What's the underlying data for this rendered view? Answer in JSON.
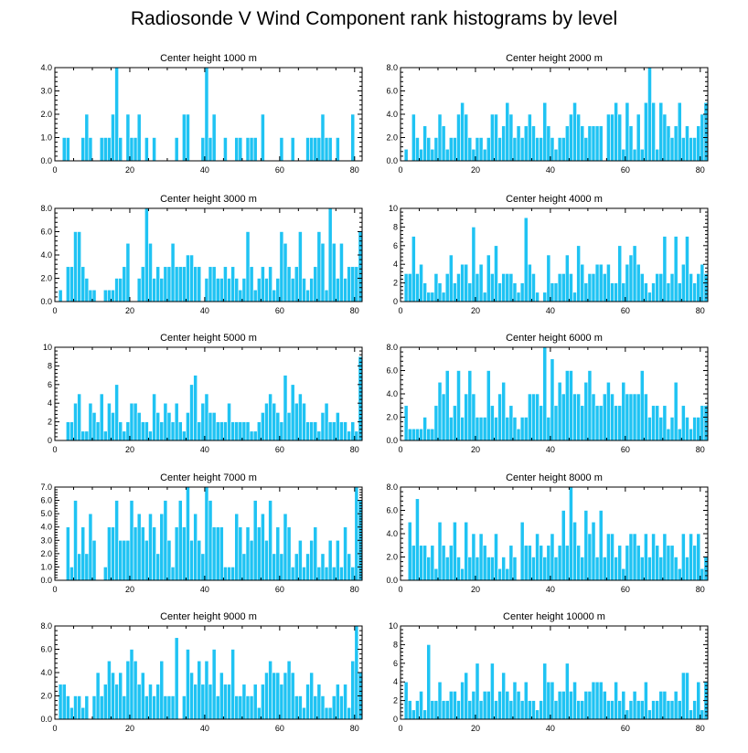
{
  "title": "Radiosonde V Wind Component rank histograms by level",
  "colors": {
    "bar": "#1FC3F3",
    "bar_edge": "#ffffff",
    "axis": "#000000"
  },
  "chart_data": [
    {
      "type": "bar",
      "title": "Center height 1000 m",
      "xlim": [
        0,
        82
      ],
      "ylim": [
        0,
        4
      ],
      "xticks": [
        0,
        20,
        40,
        60,
        80
      ],
      "yticks": [
        "0.0",
        "1.0",
        "2.0",
        "3.0",
        "4.0"
      ],
      "yticks_values": [
        0,
        1,
        2,
        3,
        4
      ],
      "values": [
        0,
        0,
        1,
        1,
        0,
        0,
        0,
        1,
        2,
        1,
        0,
        0,
        1,
        1,
        1,
        2,
        4,
        1,
        0,
        2,
        1,
        1,
        2,
        0,
        1,
        0,
        1,
        0,
        0,
        0,
        0,
        0,
        1,
        0,
        2,
        2,
        0,
        0,
        0,
        1,
        4,
        1,
        2,
        0,
        0,
        1,
        0,
        0,
        1,
        1,
        0,
        1,
        1,
        1,
        0,
        2,
        0,
        0,
        0,
        0,
        1,
        0,
        0,
        1,
        0,
        0,
        0,
        1,
        1,
        1,
        1,
        2,
        1,
        1,
        0,
        1,
        0,
        0,
        0,
        2,
        0,
        0
      ]
    },
    {
      "type": "bar",
      "title": "Center height 2000 m",
      "xlim": [
        0,
        82
      ],
      "ylim": [
        0,
        8
      ],
      "xticks": [
        0,
        20,
        40,
        60,
        80
      ],
      "yticks": [
        "0.0",
        "2.0",
        "4.0",
        "6.0",
        "8.0"
      ],
      "yticks_values": [
        0,
        2,
        4,
        6,
        8
      ],
      "values": [
        0,
        1,
        0,
        4,
        2,
        1,
        3,
        2,
        1,
        2,
        4,
        3,
        1,
        2,
        2,
        4,
        5,
        4,
        2,
        1,
        2,
        2,
        1,
        2,
        4,
        4,
        2,
        3,
        5,
        4,
        2,
        3,
        2,
        3,
        4,
        3,
        2,
        2,
        5,
        3,
        2,
        1,
        2,
        2,
        3,
        4,
        5,
        4,
        3,
        2,
        3,
        3,
        3,
        3,
        0,
        4,
        4,
        5,
        4,
        1,
        5,
        3,
        1,
        4,
        1,
        5,
        8,
        5,
        1,
        5,
        4,
        3,
        2,
        3,
        5,
        2,
        3,
        2,
        2,
        3,
        4,
        5
      ]
    },
    {
      "type": "bar",
      "title": "Center height 3000 m",
      "xlim": [
        0,
        82
      ],
      "ylim": [
        0,
        8
      ],
      "xticks": [
        0,
        20,
        40,
        60,
        80
      ],
      "yticks": [
        "0.0",
        "2.0",
        "4.0",
        "6.0",
        "8.0"
      ],
      "yticks_values": [
        0,
        2,
        4,
        6,
        8
      ],
      "values": [
        0,
        1,
        0,
        3,
        3,
        6,
        6,
        3,
        2,
        1,
        1,
        0,
        0,
        1,
        1,
        1,
        2,
        2,
        3,
        5,
        0,
        0,
        2,
        3,
        8,
        5,
        2,
        3,
        2,
        3,
        3,
        5,
        3,
        3,
        3,
        4,
        4,
        3,
        3,
        0,
        2,
        3,
        3,
        2,
        2,
        3,
        2,
        3,
        2,
        1,
        2,
        6,
        3,
        1,
        2,
        3,
        2,
        3,
        1,
        2,
        6,
        5,
        3,
        2,
        3,
        6,
        2,
        1,
        2,
        3,
        6,
        5,
        1,
        8,
        5,
        2,
        5,
        2,
        3,
        3,
        3,
        6
      ]
    },
    {
      "type": "bar",
      "title": "Center height 4000 m",
      "xlim": [
        0,
        82
      ],
      "ylim": [
        0,
        10
      ],
      "xticks": [
        0,
        20,
        40,
        60,
        80
      ],
      "yticks": [
        "0",
        "2",
        "4",
        "6",
        "8",
        "10"
      ],
      "yticks_values": [
        0,
        2,
        4,
        6,
        8,
        10
      ],
      "values": [
        0,
        3,
        3,
        7,
        3,
        4,
        2,
        1,
        1,
        3,
        2,
        1,
        3,
        5,
        2,
        3,
        4,
        4,
        2,
        8,
        3,
        4,
        1,
        5,
        3,
        6,
        2,
        3,
        3,
        3,
        2,
        1,
        2,
        9,
        4,
        3,
        1,
        0,
        1,
        5,
        2,
        2,
        3,
        3,
        5,
        3,
        1,
        6,
        4,
        2,
        3,
        3,
        4,
        4,
        3,
        4,
        2,
        2,
        6,
        2,
        4,
        5,
        6,
        4,
        3,
        2,
        1,
        2,
        3,
        3,
        7,
        2,
        3,
        7,
        2,
        4,
        7,
        3,
        2,
        3,
        4,
        3
      ]
    },
    {
      "type": "bar",
      "title": "Center height 5000 m",
      "xlim": [
        0,
        82
      ],
      "ylim": [
        0,
        10
      ],
      "xticks": [
        0,
        20,
        40,
        60,
        80
      ],
      "yticks": [
        "0",
        "2",
        "4",
        "6",
        "8",
        "10"
      ],
      "yticks_values": [
        0,
        2,
        4,
        6,
        8,
        10
      ],
      "values": [
        0,
        0,
        0,
        2,
        2,
        4,
        5,
        1,
        1,
        4,
        3,
        2,
        5,
        1,
        4,
        3,
        6,
        2,
        1,
        2,
        4,
        4,
        3,
        2,
        2,
        1,
        5,
        3,
        2,
        4,
        3,
        2,
        4,
        2,
        1,
        3,
        6,
        7,
        2,
        4,
        5,
        3,
        3,
        2,
        2,
        2,
        4,
        2,
        2,
        2,
        2,
        2,
        1,
        1,
        2,
        3,
        4,
        5,
        4,
        3,
        2,
        7,
        3,
        6,
        4,
        5,
        4,
        2,
        2,
        2,
        1,
        3,
        4,
        2,
        2,
        3,
        2,
        2,
        1,
        2,
        1,
        9
      ]
    },
    {
      "type": "bar",
      "title": "Center height 6000 m",
      "xlim": [
        0,
        82
      ],
      "ylim": [
        0,
        8
      ],
      "xticks": [
        0,
        20,
        40,
        60,
        80
      ],
      "yticks": [
        "0.0",
        "2.0",
        "4.0",
        "6.0",
        "8.0"
      ],
      "yticks_values": [
        0,
        2,
        4,
        6,
        8
      ],
      "values": [
        0,
        3,
        1,
        1,
        1,
        1,
        2,
        1,
        1,
        3,
        5,
        4,
        6,
        2,
        3,
        6,
        2,
        4,
        6,
        4,
        2,
        2,
        2,
        6,
        3,
        2,
        4,
        5,
        2,
        3,
        2,
        1,
        2,
        2,
        4,
        4,
        4,
        3,
        8,
        2,
        7,
        3,
        5,
        4,
        6,
        6,
        4,
        4,
        3,
        5,
        6,
        4,
        3,
        3,
        4,
        5,
        4,
        3,
        3,
        5,
        4,
        4,
        4,
        4,
        6,
        4,
        2,
        3,
        3,
        2,
        3,
        1,
        2,
        5,
        1,
        3,
        2,
        1,
        2,
        2,
        3,
        3
      ]
    },
    {
      "type": "bar",
      "title": "Center height 7000 m",
      "xlim": [
        0,
        82
      ],
      "ylim": [
        0,
        7
      ],
      "xticks": [
        0,
        20,
        40,
        60,
        80
      ],
      "yticks": [
        "0.0",
        "1.0",
        "2.0",
        "3.0",
        "4.0",
        "5.0",
        "6.0",
        "7.0"
      ],
      "yticks_values": [
        0,
        1,
        2,
        3,
        4,
        5,
        6,
        7
      ],
      "values": [
        0,
        0,
        0,
        4,
        1,
        6,
        2,
        4,
        2,
        5,
        3,
        0,
        0,
        1,
        4,
        4,
        6,
        3,
        3,
        3,
        6,
        4,
        5,
        4,
        3,
        5,
        4,
        2,
        5,
        6,
        3,
        1,
        4,
        6,
        4,
        7,
        3,
        5,
        3,
        2,
        7,
        6,
        4,
        4,
        4,
        1,
        1,
        1,
        5,
        4,
        2,
        4,
        3,
        6,
        4,
        5,
        3,
        6,
        2,
        4,
        2,
        5,
        4,
        1,
        2,
        3,
        1,
        2,
        3,
        4,
        1,
        2,
        1,
        3,
        1,
        3,
        1,
        4,
        2,
        1,
        7,
        6
      ]
    },
    {
      "type": "bar",
      "title": "Center height 8000 m",
      "xlim": [
        0,
        82
      ],
      "ylim": [
        0,
        8
      ],
      "xticks": [
        0,
        20,
        40,
        60,
        80
      ],
      "yticks": [
        "0.0",
        "2.0",
        "4.0",
        "6.0",
        "8.0"
      ],
      "yticks_values": [
        0,
        2,
        4,
        6,
        8
      ],
      "values": [
        0,
        0,
        5,
        3,
        7,
        3,
        3,
        2,
        3,
        1,
        5,
        3,
        2,
        3,
        5,
        2,
        1,
        5,
        2,
        4,
        2,
        4,
        3,
        2,
        2,
        4,
        1,
        2,
        1,
        3,
        2,
        0,
        5,
        3,
        3,
        2,
        4,
        3,
        2,
        3,
        4,
        2,
        3,
        6,
        3,
        8,
        5,
        3,
        2,
        6,
        4,
        5,
        2,
        6,
        2,
        4,
        4,
        2,
        3,
        1,
        3,
        4,
        4,
        3,
        2,
        4,
        2,
        4,
        3,
        2,
        4,
        3,
        3,
        2,
        1,
        4,
        2,
        4,
        3,
        4,
        1,
        2
      ]
    },
    {
      "type": "bar",
      "title": "Center height 9000 m",
      "xlim": [
        0,
        82
      ],
      "ylim": [
        0,
        8
      ],
      "xticks": [
        0,
        20,
        40,
        60,
        80
      ],
      "yticks": [
        "0.0",
        "2.0",
        "4.0",
        "6.0",
        "8.0"
      ],
      "yticks_values": [
        0,
        2,
        4,
        6,
        8
      ],
      "values": [
        0,
        3,
        3,
        2,
        1,
        2,
        2,
        1,
        2,
        0,
        2,
        4,
        2,
        3,
        5,
        4,
        3,
        4,
        2,
        5,
        6,
        5,
        3,
        4,
        2,
        3,
        2,
        3,
        5,
        2,
        2,
        2,
        7,
        0,
        2,
        6,
        4,
        3,
        5,
        3,
        5,
        3,
        6,
        2,
        4,
        3,
        3,
        6,
        2,
        2,
        3,
        2,
        2,
        3,
        1,
        3,
        4,
        5,
        4,
        4,
        3,
        4,
        5,
        4,
        2,
        2,
        1,
        3,
        4,
        2,
        3,
        2,
        1,
        1,
        2,
        3,
        2,
        3,
        1,
        5,
        8,
        4
      ]
    },
    {
      "type": "bar",
      "title": "Center height 10000 m",
      "xlim": [
        0,
        82
      ],
      "ylim": [
        0,
        10
      ],
      "xticks": [
        0,
        20,
        40,
        60,
        80
      ],
      "yticks": [
        "0",
        "2",
        "4",
        "6",
        "8",
        "10"
      ],
      "yticks_values": [
        0,
        2,
        4,
        6,
        8,
        10
      ],
      "values": [
        0,
        4,
        2,
        1,
        2,
        3,
        1,
        8,
        2,
        2,
        4,
        2,
        2,
        3,
        3,
        2,
        4,
        5,
        2,
        3,
        6,
        2,
        3,
        3,
        6,
        2,
        3,
        5,
        3,
        2,
        4,
        3,
        2,
        4,
        2,
        2,
        1,
        2,
        6,
        4,
        4,
        2,
        3,
        3,
        6,
        3,
        4,
        2,
        2,
        3,
        3,
        4,
        4,
        4,
        3,
        2,
        2,
        4,
        2,
        3,
        1,
        2,
        3,
        2,
        2,
        4,
        1,
        2,
        2,
        3,
        3,
        2,
        2,
        3,
        2,
        5,
        5,
        1,
        2,
        4,
        1,
        4
      ]
    }
  ]
}
